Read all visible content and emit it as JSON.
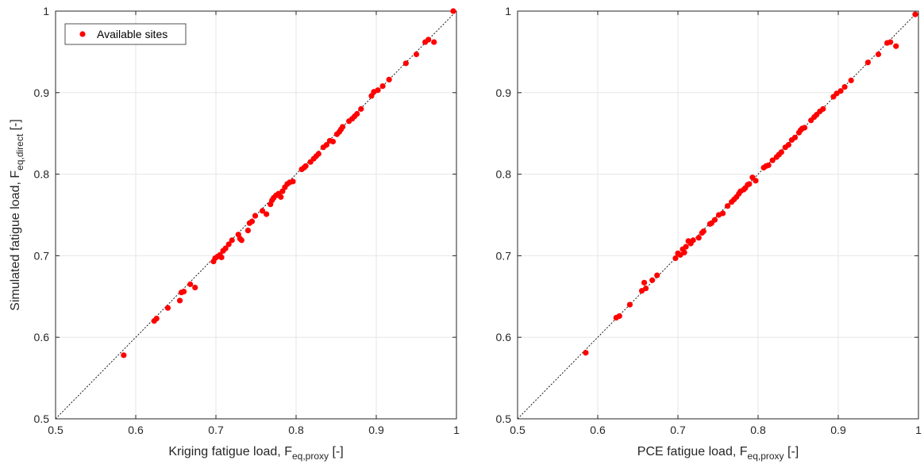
{
  "colors": {
    "marker": "#ff0000",
    "grid": "#e6e6e6",
    "axis": "#262626",
    "diagonal": "#000000"
  },
  "charts": [
    {
      "type": "scatter",
      "xlabel": {
        "main": "Kriging fatigue load, F",
        "sub": "eq,proxy",
        "unit": " [-]"
      },
      "ylabel": {
        "main": "Simulated fatigue load, F",
        "sub": "eq,direct",
        "unit": " [-]"
      },
      "xlim": [
        0.5,
        1
      ],
      "ylim": [
        0.5,
        1
      ],
      "xticks": [
        "0.5",
        "0.6",
        "0.7",
        "0.8",
        "0.9",
        "1"
      ],
      "yticks": [
        "0.5",
        "0.6",
        "0.7",
        "0.8",
        "0.9",
        "1"
      ],
      "grid": true,
      "reference_line": "y = x (dotted)",
      "legend": {
        "entries": [
          "Available sites"
        ],
        "position": "top-left"
      }
    },
    {
      "type": "scatter",
      "xlabel": {
        "main": "PCE fatigue load, F",
        "sub": "eq,proxy",
        "unit": " [-]"
      },
      "ylabel": null,
      "xlim": [
        0.5,
        1
      ],
      "ylim": [
        0.5,
        1
      ],
      "xticks": [
        "0.5",
        "0.6",
        "0.7",
        "0.8",
        "0.9",
        "1"
      ],
      "yticks": [
        "0.5",
        "0.6",
        "0.7",
        "0.8",
        "0.9",
        "1"
      ],
      "grid": true,
      "reference_line": "y = x (dotted)",
      "legend": null
    }
  ],
  "chart_data": [
    {
      "type": "scatter",
      "xlabel": "Kriging fatigue load, F_eq,proxy [-]",
      "ylabel": "Simulated fatigue load, F_eq,direct [-]",
      "xlim": [
        0.5,
        1
      ],
      "ylim": [
        0.5,
        1
      ],
      "series": [
        {
          "name": "Available sites",
          "points": [
            [
              0.585,
              0.578
            ],
            [
              0.623,
              0.62
            ],
            [
              0.626,
              0.623
            ],
            [
              0.64,
              0.636
            ],
            [
              0.655,
              0.645
            ],
            [
              0.657,
              0.655
            ],
            [
              0.66,
              0.656
            ],
            [
              0.668,
              0.665
            ],
            [
              0.674,
              0.661
            ],
            [
              0.697,
              0.693
            ],
            [
              0.699,
              0.697
            ],
            [
              0.702,
              0.699
            ],
            [
              0.705,
              0.701
            ],
            [
              0.707,
              0.698
            ],
            [
              0.709,
              0.706
            ],
            [
              0.712,
              0.709
            ],
            [
              0.716,
              0.714
            ],
            [
              0.72,
              0.719
            ],
            [
              0.728,
              0.726
            ],
            [
              0.73,
              0.721
            ],
            [
              0.732,
              0.719
            ],
            [
              0.74,
              0.731
            ],
            [
              0.742,
              0.74
            ],
            [
              0.745,
              0.742
            ],
            [
              0.749,
              0.749
            ],
            [
              0.758,
              0.755
            ],
            [
              0.763,
              0.751
            ],
            [
              0.768,
              0.763
            ],
            [
              0.77,
              0.768
            ],
            [
              0.772,
              0.771
            ],
            [
              0.775,
              0.774
            ],
            [
              0.778,
              0.776
            ],
            [
              0.781,
              0.772
            ],
            [
              0.783,
              0.779
            ],
            [
              0.786,
              0.784
            ],
            [
              0.789,
              0.788
            ],
            [
              0.792,
              0.79
            ],
            [
              0.796,
              0.791
            ],
            [
              0.807,
              0.806
            ],
            [
              0.81,
              0.808
            ],
            [
              0.812,
              0.81
            ],
            [
              0.818,
              0.815
            ],
            [
              0.822,
              0.819
            ],
            [
              0.825,
              0.822
            ],
            [
              0.828,
              0.825
            ],
            [
              0.834,
              0.833
            ],
            [
              0.838,
              0.836
            ],
            [
              0.842,
              0.841
            ],
            [
              0.846,
              0.84
            ],
            [
              0.851,
              0.849
            ],
            [
              0.854,
              0.852
            ],
            [
              0.856,
              0.855
            ],
            [
              0.858,
              0.858
            ],
            [
              0.866,
              0.865
            ],
            [
              0.87,
              0.868
            ],
            [
              0.873,
              0.871
            ],
            [
              0.876,
              0.874
            ],
            [
              0.881,
              0.88
            ],
            [
              0.894,
              0.896
            ],
            [
              0.897,
              0.901
            ],
            [
              0.902,
              0.903
            ],
            [
              0.908,
              0.908
            ],
            [
              0.916,
              0.916
            ],
            [
              0.937,
              0.936
            ],
            [
              0.95,
              0.947
            ],
            [
              0.961,
              0.962
            ],
            [
              0.965,
              0.965
            ],
            [
              0.972,
              0.962
            ],
            [
              0.996,
              1.0
            ]
          ]
        }
      ]
    },
    {
      "type": "scatter",
      "xlabel": "PCE fatigue load, F_eq,proxy [-]",
      "ylabel": "",
      "xlim": [
        0.5,
        1
      ],
      "ylim": [
        0.5,
        1
      ],
      "series": [
        {
          "name": "Available sites",
          "points": [
            [
              0.585,
              0.581
            ],
            [
              0.623,
              0.624
            ],
            [
              0.627,
              0.626
            ],
            [
              0.64,
              0.64
            ],
            [
              0.655,
              0.657
            ],
            [
              0.658,
              0.667
            ],
            [
              0.66,
              0.66
            ],
            [
              0.668,
              0.67
            ],
            [
              0.674,
              0.676
            ],
            [
              0.697,
              0.697
            ],
            [
              0.7,
              0.703
            ],
            [
              0.703,
              0.701
            ],
            [
              0.706,
              0.708
            ],
            [
              0.708,
              0.704
            ],
            [
              0.71,
              0.711
            ],
            [
              0.713,
              0.718
            ],
            [
              0.716,
              0.715
            ],
            [
              0.719,
              0.719
            ],
            [
              0.726,
              0.722
            ],
            [
              0.73,
              0.728
            ],
            [
              0.732,
              0.73
            ],
            [
              0.74,
              0.739
            ],
            [
              0.742,
              0.74
            ],
            [
              0.746,
              0.744
            ],
            [
              0.751,
              0.75
            ],
            [
              0.756,
              0.752
            ],
            [
              0.762,
              0.761
            ],
            [
              0.767,
              0.766
            ],
            [
              0.77,
              0.769
            ],
            [
              0.773,
              0.772
            ],
            [
              0.776,
              0.776
            ],
            [
              0.778,
              0.779
            ],
            [
              0.782,
              0.781
            ],
            [
              0.784,
              0.783
            ],
            [
              0.787,
              0.787
            ],
            [
              0.789,
              0.788
            ],
            [
              0.793,
              0.796
            ],
            [
              0.797,
              0.792
            ],
            [
              0.807,
              0.808
            ],
            [
              0.81,
              0.81
            ],
            [
              0.813,
              0.811
            ],
            [
              0.818,
              0.817
            ],
            [
              0.823,
              0.821
            ],
            [
              0.826,
              0.824
            ],
            [
              0.829,
              0.827
            ],
            [
              0.834,
              0.833
            ],
            [
              0.838,
              0.836
            ],
            [
              0.842,
              0.842
            ],
            [
              0.846,
              0.845
            ],
            [
              0.851,
              0.851
            ],
            [
              0.853,
              0.854
            ],
            [
              0.855,
              0.856
            ],
            [
              0.858,
              0.857
            ],
            [
              0.866,
              0.866
            ],
            [
              0.87,
              0.87
            ],
            [
              0.873,
              0.873
            ],
            [
              0.877,
              0.877
            ],
            [
              0.881,
              0.88
            ],
            [
              0.894,
              0.895
            ],
            [
              0.898,
              0.899
            ],
            [
              0.903,
              0.902
            ],
            [
              0.908,
              0.907
            ],
            [
              0.916,
              0.915
            ],
            [
              0.937,
              0.937
            ],
            [
              0.95,
              0.947
            ],
            [
              0.961,
              0.961
            ],
            [
              0.965,
              0.962
            ],
            [
              0.972,
              0.957
            ],
            [
              0.996,
              0.996
            ]
          ]
        }
      ]
    }
  ]
}
